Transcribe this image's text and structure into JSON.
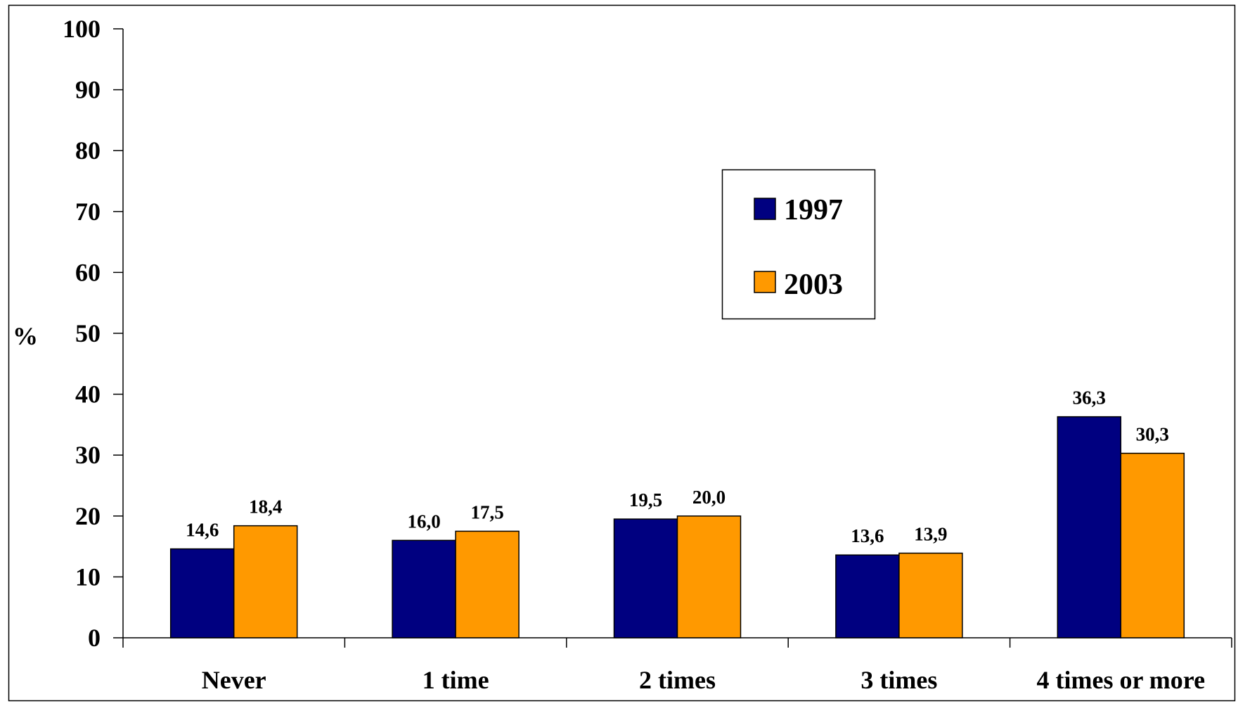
{
  "chart_data": {
    "type": "bar",
    "title": "",
    "xlabel": "",
    "ylabel": "%",
    "ylim": [
      0,
      100
    ],
    "yticks": [
      0,
      10,
      20,
      30,
      40,
      50,
      60,
      70,
      80,
      90,
      100
    ],
    "categories": [
      "Never",
      "1 time",
      "2 times",
      "3 times",
      "4 times or more"
    ],
    "series": [
      {
        "name": "1997",
        "color": "#000080",
        "values": [
          14.6,
          16.0,
          19.5,
          13.6,
          36.3
        ],
        "labels": [
          "14,6",
          "16,0",
          "19,5",
          "13,6",
          "36,3"
        ]
      },
      {
        "name": "2003",
        "color": "#FF9900",
        "values": [
          18.4,
          17.5,
          20.0,
          13.9,
          30.3
        ],
        "labels": [
          "18,4",
          "17,5",
          "20,0",
          "13,9",
          "30,3"
        ]
      }
    ],
    "grid": false,
    "legend_position": "upper-middle"
  }
}
